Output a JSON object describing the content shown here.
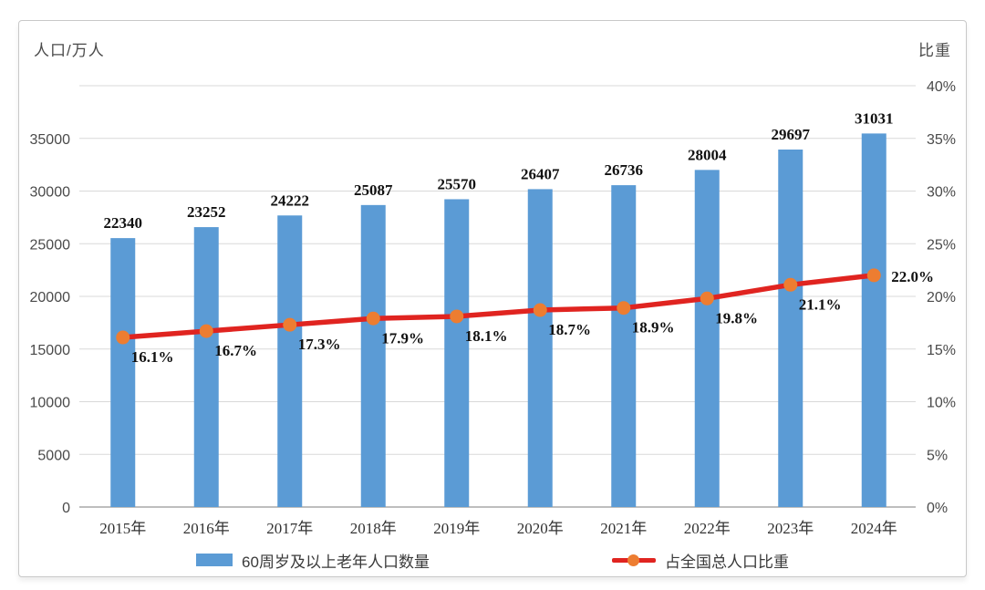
{
  "chart_data": {
    "type": "bar",
    "subtype": "bar+line combo, dual axis",
    "categories": [
      "2015年",
      "2016年",
      "2017年",
      "2018年",
      "2019年",
      "2020年",
      "2021年",
      "2022年",
      "2023年",
      "2024年"
    ],
    "series": [
      {
        "name": "60周岁及以上老年人口数量",
        "type": "bar",
        "axis": "left",
        "color": "#5b9bd5",
        "values": [
          22340,
          23252,
          24222,
          25087,
          25570,
          26407,
          26736,
          28004,
          29697,
          31031
        ],
        "value_labels": [
          "22340",
          "23252",
          "24222",
          "25087",
          "25570",
          "26407",
          "26736",
          "28004",
          "29697",
          "31031"
        ]
      },
      {
        "name": "占全国总人口比重",
        "type": "line",
        "axis": "right",
        "color": "#e02420",
        "marker_color": "#ed7d31",
        "values": [
          16.1,
          16.7,
          17.3,
          17.9,
          18.1,
          18.7,
          18.9,
          19.8,
          21.1,
          22.0
        ],
        "value_labels": [
          "16.1%",
          "16.7%",
          "17.3%",
          "17.9%",
          "18.1%",
          "18.7%",
          "18.9%",
          "19.8%",
          "21.1%",
          "22.0%"
        ]
      }
    ],
    "left_axis": {
      "title": "人口/万人",
      "min": 0,
      "max": 35000,
      "step": 5000,
      "tick_labels": [
        "0",
        "5000",
        "10000",
        "15000",
        "20000",
        "25000",
        "30000",
        "35000"
      ]
    },
    "right_axis": {
      "title": "比重",
      "min": 0,
      "max": 40,
      "step": 5,
      "tick_labels": [
        "0%",
        "5%",
        "10%",
        "15%",
        "20%",
        "25%",
        "30%",
        "35%",
        "40%"
      ]
    },
    "grid": true,
    "legend_position": "bottom",
    "gridline_color": "#d9d9d9",
    "baseline_color": "#a8a8a8",
    "label_color": "#111111",
    "tick_color": "#4a4a4a"
  },
  "legend": [
    {
      "label": "60周岁及以上老年人口数量"
    },
    {
      "label": "占全国总人口比重"
    }
  ]
}
